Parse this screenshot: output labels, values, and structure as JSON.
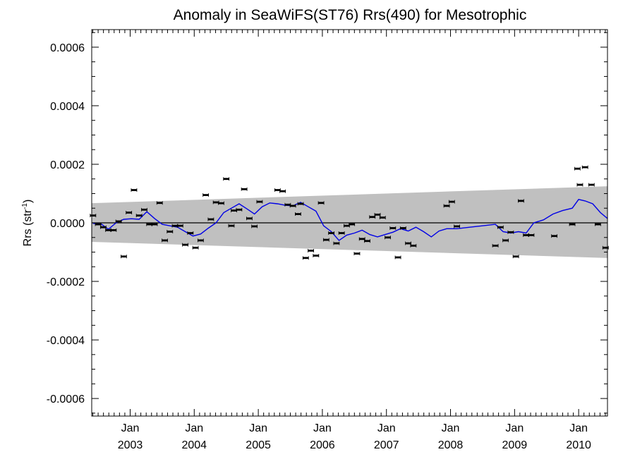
{
  "chart_data": {
    "type": "scatter",
    "title": "Anomaly in SeaWiFS(ST76) Rrs(490) for Mesotrophic",
    "ylabel_main": "Rrs (str",
    "ylabel_sup": "-1",
    "ylabel_close": ")",
    "xlabel": "",
    "ylim": [
      -0.00066,
      0.00066
    ],
    "xlim": [
      2002.4,
      2010.45
    ],
    "grid": false,
    "y_ticks": [
      {
        "value": 0.0006,
        "label": "0.0006"
      },
      {
        "value": 0.0004,
        "label": "0.0004"
      },
      {
        "value": 0.0002,
        "label": "0.0002"
      },
      {
        "value": 0.0,
        "label": "0.0000"
      },
      {
        "value": -0.0002,
        "label": "-0.0002"
      },
      {
        "value": -0.0004,
        "label": "-0.0004"
      },
      {
        "value": -0.0006,
        "label": "-0.0006"
      }
    ],
    "x_ticks": [
      {
        "value": 2003.0,
        "month": "Jan",
        "year": "2003"
      },
      {
        "value": 2004.0,
        "month": "Jan",
        "year": "2004"
      },
      {
        "value": 2005.0,
        "month": "Jan",
        "year": "2005"
      },
      {
        "value": 2006.0,
        "month": "Jan",
        "year": "2006"
      },
      {
        "value": 2007.0,
        "month": "Jan",
        "year": "2007"
      },
      {
        "value": 2008.0,
        "month": "Jan",
        "year": "2008"
      },
      {
        "value": 2009.0,
        "month": "Jan",
        "year": "2009"
      },
      {
        "value": 2010.0,
        "month": "Jan",
        "year": "2010"
      }
    ],
    "band": {
      "color": "#c0c0c0",
      "upper_start": 6.7e-05,
      "upper_end": 0.000125,
      "lower_start": -6.5e-05,
      "lower_end": -0.00012
    },
    "zero_line_color": "#000000",
    "series": [
      {
        "marker": "errorbar-dash",
        "color": "#000000",
        "points": [
          {
            "x": 2002.42,
            "y": 2.5e-05
          },
          {
            "x": 2002.5,
            "y": -5e-06
          },
          {
            "x": 2002.58,
            "y": -1.5e-05
          },
          {
            "x": 2002.66,
            "y": -2.5e-05
          },
          {
            "x": 2002.74,
            "y": -2.5e-05
          },
          {
            "x": 2002.82,
            "y": 5e-06
          },
          {
            "x": 2002.9,
            "y": -0.000115
          },
          {
            "x": 2002.98,
            "y": 3.5e-05
          },
          {
            "x": 2003.06,
            "y": 0.000112
          },
          {
            "x": 2003.14,
            "y": 2.5e-05
          },
          {
            "x": 2003.22,
            "y": 4.5e-05
          },
          {
            "x": 2003.3,
            "y": -5e-06
          },
          {
            "x": 2003.38,
            "y": -5e-06
          },
          {
            "x": 2003.46,
            "y": 6.8e-05
          },
          {
            "x": 2003.54,
            "y": -6e-05
          },
          {
            "x": 2003.62,
            "y": -3e-05
          },
          {
            "x": 2003.7,
            "y": -1e-05
          },
          {
            "x": 2003.78,
            "y": -1e-05
          },
          {
            "x": 2003.86,
            "y": -7.5e-05
          },
          {
            "x": 2003.94,
            "y": -3.5e-05
          },
          {
            "x": 2004.02,
            "y": -8.5e-05
          },
          {
            "x": 2004.1,
            "y": -6e-05
          },
          {
            "x": 2004.18,
            "y": 9.5e-05
          },
          {
            "x": 2004.26,
            "y": 1.2e-05
          },
          {
            "x": 2004.34,
            "y": 7e-05
          },
          {
            "x": 2004.42,
            "y": 6.7e-05
          },
          {
            "x": 2004.5,
            "y": 0.00015
          },
          {
            "x": 2004.58,
            "y": -1e-05
          },
          {
            "x": 2004.62,
            "y": 4.2e-05
          },
          {
            "x": 2004.7,
            "y": 4.5e-05
          },
          {
            "x": 2004.78,
            "y": 0.000115
          },
          {
            "x": 2004.86,
            "y": 1.5e-05
          },
          {
            "x": 2004.94,
            "y": -1.2e-05
          },
          {
            "x": 2005.02,
            "y": 7.2e-05
          },
          {
            "x": 2005.3,
            "y": 0.000112
          },
          {
            "x": 2005.38,
            "y": 0.000108
          },
          {
            "x": 2005.46,
            "y": 6.2e-05
          },
          {
            "x": 2005.54,
            "y": 5.8e-05
          },
          {
            "x": 2005.62,
            "y": 3e-05
          },
          {
            "x": 2005.66,
            "y": 6.5e-05
          },
          {
            "x": 2005.74,
            "y": -0.00012
          },
          {
            "x": 2005.82,
            "y": -9.5e-05
          },
          {
            "x": 2005.9,
            "y": -0.000112
          },
          {
            "x": 2005.98,
            "y": 6.8e-05
          },
          {
            "x": 2006.06,
            "y": -5.8e-05
          },
          {
            "x": 2006.14,
            "y": -3.5e-05
          },
          {
            "x": 2006.22,
            "y": -7e-05
          },
          {
            "x": 2006.3,
            "y": -3.5e-05
          },
          {
            "x": 2006.38,
            "y": -1e-05
          },
          {
            "x": 2006.46,
            "y": -5e-06
          },
          {
            "x": 2006.54,
            "y": -0.000105
          },
          {
            "x": 2006.62,
            "y": -5.5e-05
          },
          {
            "x": 2006.7,
            "y": -6.2e-05
          },
          {
            "x": 2006.78,
            "y": 2e-05
          },
          {
            "x": 2006.86,
            "y": 2.8e-05
          },
          {
            "x": 2006.94,
            "y": 1.8e-05
          },
          {
            "x": 2007.02,
            "y": -5e-05
          },
          {
            "x": 2007.1,
            "y": -1.8e-05
          },
          {
            "x": 2007.18,
            "y": -0.000118
          },
          {
            "x": 2007.26,
            "y": -1.8e-05
          },
          {
            "x": 2007.34,
            "y": -7e-05
          },
          {
            "x": 2007.42,
            "y": -7.8e-05
          },
          {
            "x": 2007.94,
            "y": 5.8e-05
          },
          {
            "x": 2008.02,
            "y": 7.2e-05
          },
          {
            "x": 2008.1,
            "y": -1.2e-05
          },
          {
            "x": 2008.7,
            "y": -7.8e-05
          },
          {
            "x": 2008.78,
            "y": -1.5e-05
          },
          {
            "x": 2008.86,
            "y": -6e-05
          },
          {
            "x": 2008.94,
            "y": -3.2e-05
          },
          {
            "x": 2009.02,
            "y": -0.000115
          },
          {
            "x": 2009.1,
            "y": 7.5e-05
          },
          {
            "x": 2009.18,
            "y": -4.2e-05
          },
          {
            "x": 2009.26,
            "y": -4.2e-05
          },
          {
            "x": 2009.62,
            "y": -4.5e-05
          },
          {
            "x": 2009.9,
            "y": -5e-06
          },
          {
            "x": 2009.98,
            "y": 0.000185
          },
          {
            "x": 2010.02,
            "y": 0.00013
          },
          {
            "x": 2010.1,
            "y": 0.00019
          },
          {
            "x": 2010.2,
            "y": 0.00013
          },
          {
            "x": 2010.3,
            "y": -5e-06
          },
          {
            "x": 2010.42,
            "y": -8.5e-05
          }
        ]
      },
      {
        "marker": "line",
        "color": "#0000e6",
        "points": [
          {
            "x": 2002.42,
            "y": -2e-06
          },
          {
            "x": 2002.55,
            "y": -4e-06
          },
          {
            "x": 2002.66,
            "y": -2.2e-05
          },
          {
            "x": 2002.78,
            "y": 0.0
          },
          {
            "x": 2002.9,
            "y": 1.2e-05
          },
          {
            "x": 2003.02,
            "y": 1.4e-05
          },
          {
            "x": 2003.14,
            "y": 1.2e-05
          },
          {
            "x": 2003.26,
            "y": 3.8e-05
          },
          {
            "x": 2003.38,
            "y": 1.5e-05
          },
          {
            "x": 2003.5,
            "y": -5e-06
          },
          {
            "x": 2003.62,
            "y": -1e-05
          },
          {
            "x": 2003.74,
            "y": -1.5e-05
          },
          {
            "x": 2003.86,
            "y": -3e-05
          },
          {
            "x": 2003.98,
            "y": -4.5e-05
          },
          {
            "x": 2004.1,
            "y": -3.8e-05
          },
          {
            "x": 2004.22,
            "y": -1.8e-05
          },
          {
            "x": 2004.34,
            "y": 0.0
          },
          {
            "x": 2004.46,
            "y": 3.5e-05
          },
          {
            "x": 2004.58,
            "y": 5e-05
          },
          {
            "x": 2004.7,
            "y": 6.5e-05
          },
          {
            "x": 2004.82,
            "y": 4.8e-05
          },
          {
            "x": 2004.94,
            "y": 3e-05
          },
          {
            "x": 2005.06,
            "y": 5.5e-05
          },
          {
            "x": 2005.18,
            "y": 6.8e-05
          },
          {
            "x": 2005.3,
            "y": 6.5e-05
          },
          {
            "x": 2005.42,
            "y": 6e-05
          },
          {
            "x": 2005.54,
            "y": 5.8e-05
          },
          {
            "x": 2005.66,
            "y": 7e-05
          },
          {
            "x": 2005.78,
            "y": 5.5e-05
          },
          {
            "x": 2005.9,
            "y": 4e-05
          },
          {
            "x": 2006.02,
            "y": -1e-05
          },
          {
            "x": 2006.14,
            "y": -3e-05
          },
          {
            "x": 2006.26,
            "y": -6e-05
          },
          {
            "x": 2006.38,
            "y": -4.2e-05
          },
          {
            "x": 2006.5,
            "y": -3.5e-05
          },
          {
            "x": 2006.62,
            "y": -2.5e-05
          },
          {
            "x": 2006.74,
            "y": -4e-05
          },
          {
            "x": 2006.86,
            "y": -4.8e-05
          },
          {
            "x": 2006.98,
            "y": -4e-05
          },
          {
            "x": 2007.1,
            "y": -3.2e-05
          },
          {
            "x": 2007.22,
            "y": -2e-05
          },
          {
            "x": 2007.34,
            "y": -2.8e-05
          },
          {
            "x": 2007.46,
            "y": -1.5e-05
          },
          {
            "x": 2007.58,
            "y": -3e-05
          },
          {
            "x": 2007.7,
            "y": -4.8e-05
          },
          {
            "x": 2007.82,
            "y": -2.8e-05
          },
          {
            "x": 2007.94,
            "y": -2e-05
          },
          {
            "x": 2008.1,
            "y": -2e-05
          },
          {
            "x": 2008.3,
            "y": -1.5e-05
          },
          {
            "x": 2008.5,
            "y": -1e-05
          },
          {
            "x": 2008.7,
            "y": -5e-06
          },
          {
            "x": 2008.82,
            "y": -3e-05
          },
          {
            "x": 2008.94,
            "y": -3.5e-05
          },
          {
            "x": 2009.06,
            "y": -3e-05
          },
          {
            "x": 2009.18,
            "y": -3.5e-05
          },
          {
            "x": 2009.3,
            "y": 0.0
          },
          {
            "x": 2009.45,
            "y": 1e-05
          },
          {
            "x": 2009.6,
            "y": 3e-05
          },
          {
            "x": 2009.75,
            "y": 4.2e-05
          },
          {
            "x": 2009.9,
            "y": 5e-05
          },
          {
            "x": 2010.0,
            "y": 8e-05
          },
          {
            "x": 2010.1,
            "y": 7.5e-05
          },
          {
            "x": 2010.22,
            "y": 6.5e-05
          },
          {
            "x": 2010.34,
            "y": 3.5e-05
          },
          {
            "x": 2010.45,
            "y": 1.5e-05
          }
        ]
      }
    ]
  }
}
